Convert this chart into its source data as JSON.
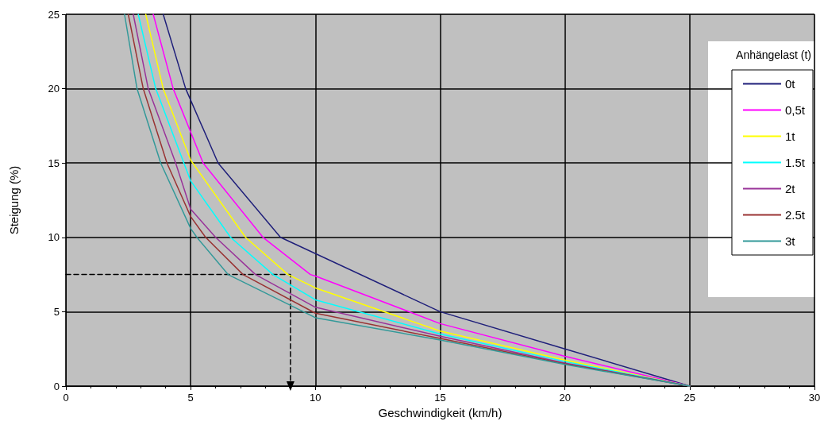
{
  "chart_data": {
    "type": "line",
    "xlabel": "Geschwindigkeit (km/h)",
    "ylabel": "Steigung (%)",
    "legend_title": "Anhängelast (t)",
    "xlim": [
      0,
      30
    ],
    "xticks": [
      0,
      5,
      10,
      15,
      20,
      25,
      30
    ],
    "ylim": [
      0,
      25
    ],
    "yticks": [
      0,
      5,
      10,
      15,
      20,
      25
    ],
    "grid": true,
    "legend": "top right",
    "marker": "none",
    "line_style": "solid",
    "series": [
      {
        "name": "0t",
        "color": "#1f1f7a",
        "x": [
          3.9,
          4.8,
          6.1,
          8.6,
          15,
          20,
          25
        ],
        "values": [
          25,
          20,
          15,
          10,
          5,
          2.5,
          0
        ]
      },
      {
        "name": "0,5t",
        "color": "#ff00ff",
        "x": [
          3.5,
          4.3,
          5.5,
          7.9,
          9.8,
          10,
          15,
          20,
          25
        ],
        "values": [
          25,
          20,
          15,
          10,
          7.5,
          7.4,
          4.2,
          2,
          0
        ]
      },
      {
        "name": "1t",
        "color": "#ffff00",
        "x": [
          3.2,
          3.9,
          5,
          7.2,
          8.9,
          10,
          15,
          20,
          25
        ],
        "values": [
          25,
          20,
          15.2,
          10,
          7.5,
          6.6,
          3.7,
          1.75,
          0
        ]
      },
      {
        "name": "1.5t",
        "color": "#00ffff",
        "x": [
          2.9,
          3.6,
          5,
          6.6,
          8.3,
          10,
          15,
          20,
          25
        ],
        "values": [
          25,
          20,
          13.8,
          10,
          7.5,
          5.8,
          3.5,
          1.65,
          0
        ]
      },
      {
        "name": "2t",
        "color": "#993399",
        "x": [
          2.7,
          3.3,
          4.4,
          5,
          6,
          7.6,
          10,
          15,
          20,
          25
        ],
        "values": [
          25,
          20,
          15,
          11.9,
          10,
          7.5,
          5.3,
          3.35,
          1.55,
          0
        ]
      },
      {
        "name": "2.5t",
        "color": "#993333",
        "x": [
          2.5,
          3.1,
          4.05,
          5,
          5.6,
          7.1,
          10,
          15,
          20,
          25
        ],
        "values": [
          25,
          20,
          15,
          11.4,
          10,
          7.5,
          4.9,
          3.2,
          1.5,
          0
        ]
      },
      {
        "name": "3t",
        "color": "#339999",
        "x": [
          2.35,
          2.85,
          3.8,
          5,
          5.25,
          6.5,
          10,
          15,
          20,
          25
        ],
        "values": [
          25,
          20,
          15,
          10.6,
          10,
          7.5,
          4.6,
          3.1,
          1.45,
          0
        ]
      },
      {
        "color": "#000000",
        "line_style": "dashed",
        "x": [
          0,
          9,
          9
        ],
        "values": [
          7.5,
          7.5,
          0
        ]
      }
    ]
  }
}
